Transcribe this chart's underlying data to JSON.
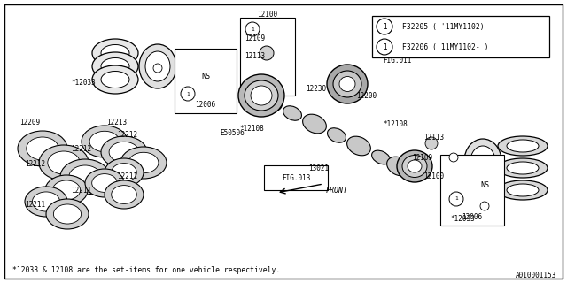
{
  "bg_color": "#ffffff",
  "line_color": "#000000",
  "text_color": "#000000",
  "footnote": "*12033 & 12108 are the set-items for one vehicle respectively.",
  "part_id": "A010001153",
  "legend_lines": [
    "F32205 (-'11MY1102)",
    "F32206 ('11MY1102- )"
  ]
}
